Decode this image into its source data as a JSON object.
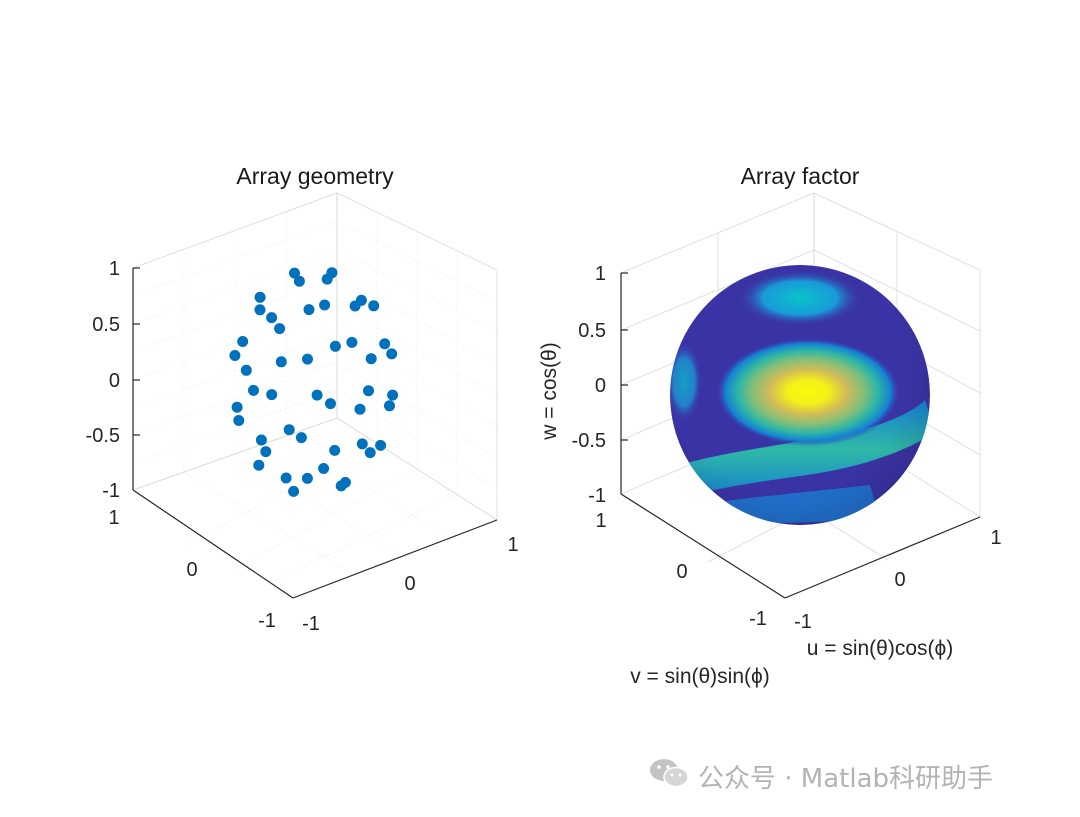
{
  "chart_data": [
    {
      "type": "scatter",
      "title": "Array geometry",
      "xlabel": "",
      "ylabel": "",
      "zlabel": "",
      "xlim": [
        -1,
        1
      ],
      "ylim": [
        -1,
        1
      ],
      "zlim": [
        -1,
        1
      ],
      "x_ticks": [
        "-1",
        "0",
        "1"
      ],
      "y_ticks": [
        "-1",
        "0",
        "1"
      ],
      "z_ticks": [
        "-1",
        "-0.5",
        "0",
        "0.5",
        "1"
      ],
      "grid": "on, minor",
      "marker_color": "#0072BD",
      "element_count": 48,
      "layout": "elements distributed over a spherical surface of radius 0.6"
    },
    {
      "type": "surface",
      "title": "Array factor",
      "xlabel": "u = sin(θ)cos(ϕ)",
      "ylabel": "v = sin(θ)sin(ϕ)",
      "zlabel": "w = cos(θ)",
      "xlim": [
        -1,
        1
      ],
      "ylim": [
        -1,
        1
      ],
      "zlim": [
        -1,
        1
      ],
      "x_ticks": [
        "-1",
        "0",
        "1"
      ],
      "y_ticks": [
        "-1",
        "0",
        "1"
      ],
      "z_ticks": [
        "-1",
        "-0.5",
        "0",
        "0.5",
        "1"
      ],
      "grid": "on",
      "colormap": "parula",
      "colormap_stops": [
        "#352a87",
        "#0f5cdd",
        "#1481d6",
        "#06a4ca",
        "#2eb7a4",
        "#87bf77",
        "#d1bb59",
        "#fec832",
        "#f9fb0e"
      ],
      "main_beam": {
        "u": 0,
        "v": 0.1,
        "w": 0,
        "relative_level": 1.0
      },
      "sidelobes": [
        {
          "region": "upper cap",
          "relative_level": 0.35
        },
        {
          "region": "lower band",
          "relative_level": 0.45
        },
        {
          "region": "left edge",
          "relative_level": 0.2
        }
      ]
    }
  ],
  "watermark": {
    "text": "公众号 · Matlab科研助手",
    "icon": "wechat-icon"
  }
}
